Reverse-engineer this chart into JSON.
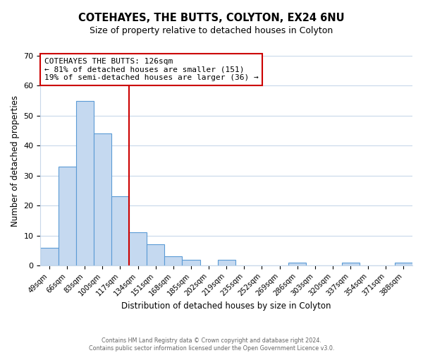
{
  "title": "COTEHAYES, THE BUTTS, COLYTON, EX24 6NU",
  "subtitle": "Size of property relative to detached houses in Colyton",
  "xlabel": "Distribution of detached houses by size in Colyton",
  "ylabel": "Number of detached properties",
  "bar_labels": [
    "49sqm",
    "66sqm",
    "83sqm",
    "100sqm",
    "117sqm",
    "134sqm",
    "151sqm",
    "168sqm",
    "185sqm",
    "202sqm",
    "219sqm",
    "235sqm",
    "252sqm",
    "269sqm",
    "286sqm",
    "303sqm",
    "320sqm",
    "337sqm",
    "354sqm",
    "371sqm",
    "388sqm"
  ],
  "bar_values": [
    6,
    33,
    55,
    44,
    23,
    11,
    7,
    3,
    2,
    0,
    2,
    0,
    0,
    0,
    1,
    0,
    0,
    1,
    0,
    0,
    1
  ],
  "bar_color": "#c5d9f0",
  "bar_edge_color": "#5b9bd5",
  "vline_index": 5,
  "vline_color": "#cc0000",
  "annotation_title": "COTEHAYES THE BUTTS: 126sqm",
  "annotation_line1": "← 81% of detached houses are smaller (151)",
  "annotation_line2": "19% of semi-detached houses are larger (36) →",
  "annotation_box_color": "#ffffff",
  "annotation_box_edge": "#cc0000",
  "ylim": [
    0,
    70
  ],
  "yticks": [
    0,
    10,
    20,
    30,
    40,
    50,
    60,
    70
  ],
  "footer1": "Contains HM Land Registry data © Crown copyright and database right 2024.",
  "footer2": "Contains public sector information licensed under the Open Government Licence v3.0.",
  "background_color": "#ffffff",
  "grid_color": "#c8d8ea"
}
